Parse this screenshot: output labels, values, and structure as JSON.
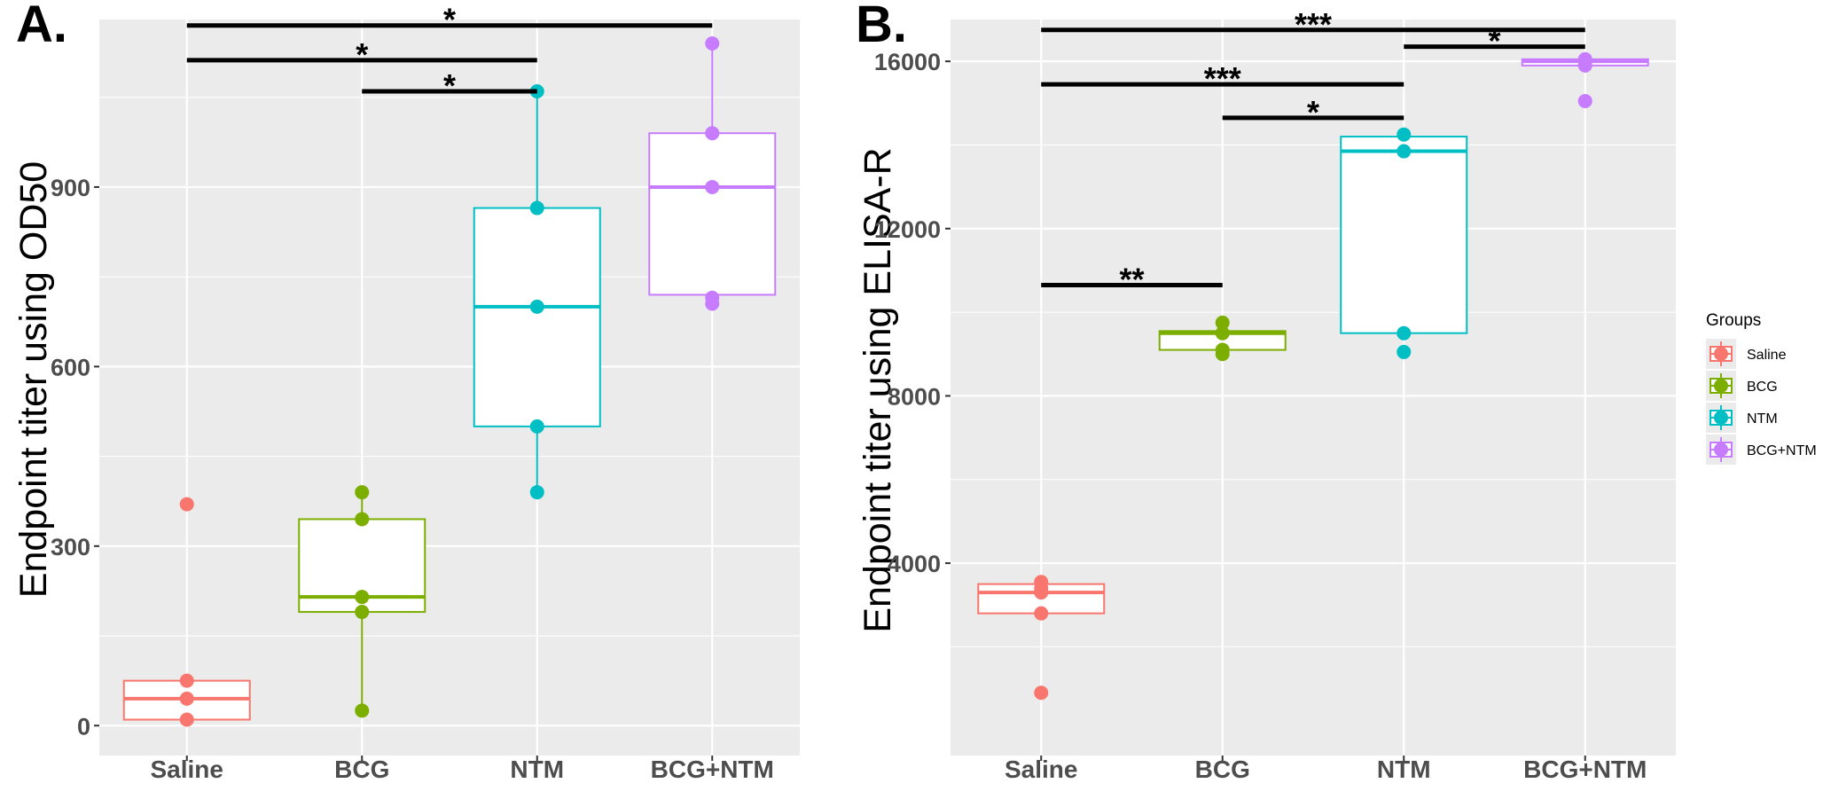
{
  "colors": {
    "Saline": "#f8766d",
    "BCG": "#7cae00",
    "NTM": "#00bfc4",
    "BCG+NTM": "#c77cff"
  },
  "legend": {
    "title": "Groups",
    "entries": [
      "Saline",
      "BCG",
      "NTM",
      "BCG+NTM"
    ]
  },
  "chart_data": [
    {
      "id": "A",
      "panel_label": "A.",
      "type": "box",
      "ylabel": "Endpoint titer using OD50",
      "xlabel": "",
      "categories": [
        "Saline",
        "BCG",
        "NTM",
        "BCG+NTM"
      ],
      "ylim": [
        -50,
        1180
      ],
      "yticks": [
        0,
        300,
        600,
        900
      ],
      "ytick_labels": [
        "0",
        "300",
        "600",
        "900"
      ],
      "boxes": [
        {
          "group": "Saline",
          "q1": 10,
          "median": 45,
          "q3": 75,
          "low": 10,
          "high": 75
        },
        {
          "group": "BCG",
          "q1": 190,
          "median": 215,
          "q3": 345,
          "low": 25,
          "high": 390
        },
        {
          "group": "NTM",
          "q1": 500,
          "median": 700,
          "q3": 865,
          "low": 390,
          "high": 1060
        },
        {
          "group": "BCG+NTM",
          "q1": 720,
          "median": 900,
          "q3": 990,
          "low": 705,
          "high": 1140
        }
      ],
      "points": [
        {
          "group": "Saline",
          "values": [
            10,
            45,
            75,
            370
          ]
        },
        {
          "group": "BCG",
          "values": [
            25,
            190,
            215,
            345,
            390
          ]
        },
        {
          "group": "NTM",
          "values": [
            390,
            500,
            700,
            865,
            1060
          ]
        },
        {
          "group": "BCG+NTM",
          "values": [
            705,
            715,
            900,
            990,
            1140
          ]
        }
      ],
      "significance": [
        {
          "from": "Saline",
          "to": "BCG+NTM",
          "y": 1170,
          "label": "*"
        },
        {
          "from": "Saline",
          "to": "NTM",
          "y": 1112,
          "label": "*"
        },
        {
          "from": "BCG",
          "to": "NTM",
          "y": 1060,
          "label": "*"
        }
      ]
    },
    {
      "id": "B",
      "panel_label": "B.",
      "type": "box",
      "ylabel": "Endpoint titer using ELISA-R",
      "xlabel": "",
      "categories": [
        "Saline",
        "BCG",
        "NTM",
        "BCG+NTM"
      ],
      "ylim": [
        -600,
        17000
      ],
      "yticks": [
        4000,
        8000,
        12000,
        16000
      ],
      "ytick_labels": [
        "4000",
        "8000",
        "12000",
        "16000"
      ],
      "boxes": [
        {
          "group": "Saline",
          "q1": 2800,
          "median": 3300,
          "q3": 3500,
          "low": 2800,
          "high": 3500
        },
        {
          "group": "BCG",
          "q1": 9100,
          "median": 9500,
          "q3": 9550,
          "low": 9100,
          "high": 9550
        },
        {
          "group": "NTM",
          "q1": 9500,
          "median": 13850,
          "q3": 14200,
          "low": 9500,
          "high": 14200
        },
        {
          "group": "BCG+NTM",
          "q1": 15900,
          "median": 16000,
          "q3": 16050,
          "low": 15900,
          "high": 16050
        }
      ],
      "points": [
        {
          "group": "Saline",
          "values": [
            900,
            2800,
            3300,
            3400,
            3550
          ]
        },
        {
          "group": "BCG",
          "values": [
            9000,
            9100,
            9500,
            9750
          ]
        },
        {
          "group": "NTM",
          "values": [
            9050,
            9500,
            13850,
            14250
          ]
        },
        {
          "group": "BCG+NTM",
          "values": [
            15050,
            15900,
            16000,
            16050
          ]
        }
      ],
      "significance": [
        {
          "from": "Saline",
          "to": "BCG+NTM",
          "y": 16750,
          "label": "***"
        },
        {
          "from": "NTM",
          "to": "BCG+NTM",
          "y": 16350,
          "label": "*"
        },
        {
          "from": "Saline",
          "to": "NTM",
          "y": 15450,
          "label": "***"
        },
        {
          "from": "BCG",
          "to": "NTM",
          "y": 14650,
          "label": "*"
        },
        {
          "from": "Saline",
          "to": "BCG",
          "y": 10650,
          "label": "**"
        }
      ]
    }
  ]
}
